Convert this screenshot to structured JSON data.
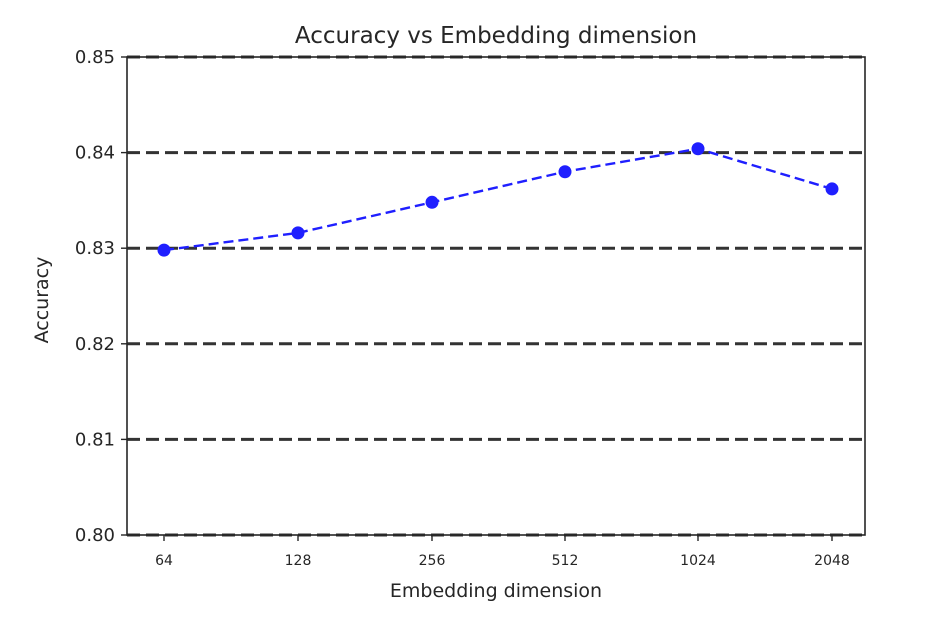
{
  "chart_data": {
    "type": "line",
    "title": "Accuracy vs Embedding dimension",
    "xlabel": "Embedding dimension",
    "ylabel": "Accuracy",
    "categories": [
      "64",
      "128",
      "256",
      "512",
      "1024",
      "2048"
    ],
    "series": [
      {
        "values": [
          0.8298,
          0.8316,
          0.8348,
          0.838,
          0.8404,
          0.8362
        ]
      }
    ],
    "ylim": [
      0.8,
      0.85
    ],
    "yticks": [
      "0.80",
      "0.81",
      "0.82",
      "0.83",
      "0.84",
      "0.85"
    ],
    "grid": "horizontal dashed",
    "line_style": "dashed",
    "marker": "circle",
    "series_color": "#1f1fff",
    "grid_color": "#333333"
  }
}
